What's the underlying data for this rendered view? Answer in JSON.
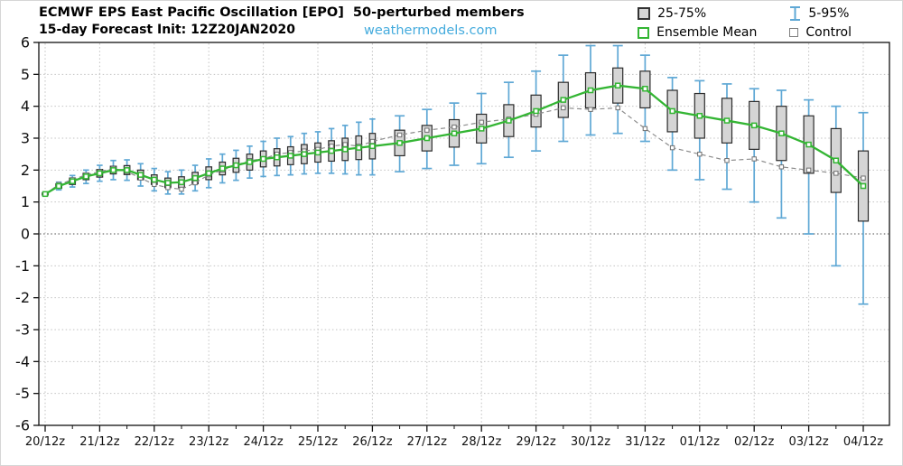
{
  "chart_data": {
    "type": "box-whisker",
    "title": "ECMWF EPS East Pacific Oscillation [EPO]  50-perturbed members",
    "subtitle": "15-day Forecast Init: 12Z20JAN2020",
    "watermark": "weathermodels.com",
    "legend": [
      {
        "label": "25-75%",
        "swatch": "iqr-box"
      },
      {
        "label": "5-95%",
        "swatch": "whisker"
      },
      {
        "label": "Ensemble Mean",
        "swatch": "mean"
      },
      {
        "label": "Control",
        "swatch": "control"
      }
    ],
    "ylim": [
      -6,
      6
    ],
    "y_tick_step": 1,
    "x_tick_interval_hours": 24,
    "x_tick_labels": [
      "20/12z",
      "21/12z",
      "22/12z",
      "23/12z",
      "24/12z",
      "25/12z",
      "26/12z",
      "27/12z",
      "28/12z",
      "29/12z",
      "30/12z",
      "31/12z",
      "01/12z",
      "02/12z",
      "03/12z",
      "04/12z"
    ],
    "hours": [
      0,
      6,
      12,
      18,
      24,
      30,
      36,
      42,
      48,
      54,
      60,
      66,
      72,
      78,
      84,
      90,
      96,
      102,
      108,
      114,
      120,
      126,
      132,
      138,
      144,
      156,
      168,
      180,
      192,
      204,
      216,
      228,
      240,
      252,
      264,
      276,
      288,
      300,
      312,
      324,
      336,
      348,
      360
    ],
    "series": {
      "mean": [
        1.25,
        1.5,
        1.65,
        1.8,
        1.9,
        2.0,
        2.0,
        1.85,
        1.7,
        1.6,
        1.62,
        1.75,
        1.9,
        2.05,
        2.15,
        2.25,
        2.35,
        2.4,
        2.45,
        2.5,
        2.55,
        2.6,
        2.65,
        2.7,
        2.75,
        2.85,
        3.0,
        3.15,
        3.3,
        3.55,
        3.85,
        4.2,
        4.5,
        4.65,
        4.55,
        3.85,
        3.7,
        3.55,
        3.4,
        3.15,
        2.8,
        2.3,
        1.5
      ],
      "control": [
        1.25,
        1.55,
        1.7,
        1.85,
        1.95,
        2.05,
        1.95,
        1.75,
        1.55,
        1.45,
        1.4,
        1.6,
        1.85,
        2.0,
        2.15,
        2.3,
        2.35,
        2.5,
        2.55,
        2.6,
        2.65,
        2.75,
        2.8,
        2.75,
        2.9,
        3.1,
        3.25,
        3.35,
        3.5,
        3.6,
        3.75,
        3.95,
        3.9,
        3.95,
        3.3,
        2.7,
        2.5,
        2.3,
        2.35,
        2.1,
        2.0,
        1.9,
        1.75
      ],
      "p25": [
        1.22,
        1.43,
        1.55,
        1.7,
        1.78,
        1.88,
        1.86,
        1.7,
        1.55,
        1.45,
        1.45,
        1.57,
        1.7,
        1.85,
        1.93,
        2.0,
        2.1,
        2.13,
        2.17,
        2.2,
        2.25,
        2.28,
        2.3,
        2.33,
        2.35,
        2.45,
        2.6,
        2.72,
        2.85,
        3.05,
        3.35,
        3.65,
        3.95,
        4.1,
        3.95,
        3.2,
        3.0,
        2.85,
        2.65,
        2.3,
        1.9,
        1.3,
        0.4
      ],
      "p75": [
        1.28,
        1.57,
        1.75,
        1.9,
        2.02,
        2.12,
        2.14,
        2.0,
        1.85,
        1.75,
        1.79,
        1.93,
        2.1,
        2.25,
        2.37,
        2.5,
        2.6,
        2.67,
        2.73,
        2.8,
        2.85,
        2.92,
        3.0,
        3.07,
        3.15,
        3.25,
        3.4,
        3.58,
        3.75,
        4.05,
        4.35,
        4.75,
        5.05,
        5.2,
        5.1,
        4.5,
        4.4,
        4.25,
        4.15,
        4.0,
        3.7,
        3.3,
        2.6
      ],
      "p5": [
        1.2,
        1.38,
        1.47,
        1.58,
        1.65,
        1.7,
        1.68,
        1.5,
        1.35,
        1.25,
        1.25,
        1.35,
        1.45,
        1.6,
        1.68,
        1.75,
        1.8,
        1.83,
        1.85,
        1.88,
        1.9,
        1.9,
        1.88,
        1.85,
        1.85,
        1.95,
        2.05,
        2.15,
        2.2,
        2.4,
        2.6,
        2.9,
        3.1,
        3.15,
        2.9,
        2.0,
        1.7,
        1.4,
        1.0,
        0.5,
        0.0,
        -1.0,
        -2.2
      ],
      "p95": [
        1.3,
        1.62,
        1.83,
        2.0,
        2.15,
        2.3,
        2.32,
        2.2,
        2.05,
        1.95,
        2.0,
        2.15,
        2.35,
        2.5,
        2.62,
        2.75,
        2.9,
        3.0,
        3.05,
        3.15,
        3.2,
        3.3,
        3.4,
        3.5,
        3.6,
        3.7,
        3.9,
        4.1,
        4.4,
        4.75,
        5.1,
        5.6,
        5.9,
        5.9,
        5.6,
        4.9,
        4.8,
        4.7,
        4.55,
        4.5,
        4.2,
        4.0,
        3.8
      ]
    },
    "colors": {
      "whisker": "#5fa8d5",
      "box_fill": "#d5d5d5",
      "box_stroke": "#2b2b2b",
      "mean": "#33b533",
      "control": "#8c8c8c",
      "watermark": "#44abdd",
      "grid": "#c2c2c2",
      "zero_line": "#707070"
    },
    "grid": "dotted",
    "legend_position": "top-right"
  }
}
